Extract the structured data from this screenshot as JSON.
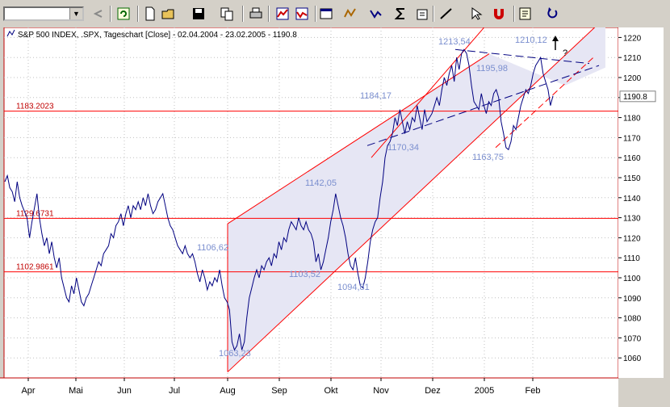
{
  "toolbar": {
    "combo_value": "",
    "buttons": [
      "undo-icon",
      "refresh-icon",
      "new-icon",
      "open-icon",
      "save-icon",
      "copy-icon",
      "print-icon",
      "chart-icon",
      "chart2-icon",
      "window-icon",
      "indicator-icon",
      "compare-icon",
      "sigma-icon",
      "options-icon",
      "draw-line-icon",
      "cursor-icon",
      "magnet-icon",
      "properties-icon",
      "redo-icon"
    ]
  },
  "chart_data": {
    "type": "line",
    "title": "S&P 500 INDEX, .SPX, Tageschart [Close] - 02.04.2004 - 23.02.2005 - 1190.8",
    "ylim": [
      1050,
      1225
    ],
    "y_ticks": [
      1060,
      1070,
      1080,
      1090,
      1100,
      1110,
      1120,
      1130,
      1140,
      1150,
      1160,
      1170,
      1180,
      1190,
      1200,
      1210,
      1220
    ],
    "x_ticks": [
      "Apr",
      "Mai",
      "Jun",
      "Jul",
      "Aug",
      "Sep",
      "Okt",
      "Nov",
      "Dez",
      "2005",
      "Feb"
    ],
    "last_value": "1190.8",
    "grid": true,
    "colors": {
      "price": "#000080",
      "channel": "#ff0000",
      "fill": "#e6e6f4",
      "trend": "#000080",
      "annotation": "#7b8fcf",
      "hline_label": "#c00000"
    },
    "horizontal_lines": [
      {
        "value": 1183.2023,
        "label": "1183.2023"
      },
      {
        "value": 1129.6731,
        "label": "1129.6731"
      },
      {
        "value": 1102.9861,
        "label": "1102.9861"
      }
    ],
    "annotations": [
      {
        "text": "1106,62",
        "x": "Aug",
        "y": 1106.62
      },
      {
        "text": "1063,23",
        "x": "Aug",
        "y": 1063.23
      },
      {
        "text": "1142,05",
        "x": "Okt",
        "y": 1142.05
      },
      {
        "text": "1103,52",
        "x": "Okt",
        "y": 1103.52
      },
      {
        "text": "1094,81",
        "x": "Okt",
        "y": 1094.81
      },
      {
        "text": "1184,17",
        "x": "Nov",
        "y": 1184.17
      },
      {
        "text": "1170,34",
        "x": "Nov",
        "y": 1170.34
      },
      {
        "text": "1213,54",
        "x": "Dez",
        "y": 1213.54
      },
      {
        "text": "1195,98",
        "x": "2005",
        "y": 1195.98
      },
      {
        "text": "1163,75",
        "x": "2005",
        "y": 1163.75
      },
      {
        "text": "1210,12",
        "x": "Feb",
        "y": 1210.12
      },
      {
        "text": "?",
        "x": "Feb",
        "y": 1216
      }
    ],
    "series": [
      {
        "values": [
          1148,
          1151,
          1145,
          1143,
          1138,
          1148,
          1140,
          1136,
          1133,
          1130,
          1120,
          1128,
          1135,
          1142,
          1130,
          1122,
          1116,
          1120,
          1112,
          1118,
          1110,
          1105,
          1110,
          1100,
          1095,
          1090,
          1088,
          1096,
          1092,
          1100,
          1094,
          1088,
          1086,
          1090,
          1092,
          1096,
          1100,
          1104,
          1108,
          1106,
          1112,
          1114,
          1116,
          1122,
          1120,
          1126,
          1128,
          1132,
          1126,
          1132,
          1136,
          1130,
          1136,
          1134,
          1138,
          1134,
          1140,
          1136,
          1142,
          1136,
          1132,
          1134,
          1138,
          1140,
          1142,
          1136,
          1130,
          1126,
          1124,
          1120,
          1116,
          1114,
          1112,
          1116,
          1112,
          1110,
          1112,
          1108,
          1102,
          1098,
          1104,
          1100,
          1094,
          1098,
          1096,
          1100,
          1098,
          1104,
          1096,
          1090,
          1088,
          1084,
          1068,
          1064,
          1066,
          1072,
          1064,
          1068,
          1080,
          1090,
          1095,
          1100,
          1104,
          1100,
          1106,
          1104,
          1108,
          1110,
          1106,
          1112,
          1110,
          1118,
          1114,
          1120,
          1118,
          1124,
          1128,
          1126,
          1124,
          1130,
          1126,
          1124,
          1128,
          1124,
          1122,
          1118,
          1108,
          1112,
          1104,
          1108,
          1114,
          1120,
          1128,
          1134,
          1142,
          1136,
          1130,
          1126,
          1120,
          1112,
          1106,
          1104,
          1110,
          1102,
          1096,
          1095,
          1100,
          1108,
          1118,
          1124,
          1128,
          1130,
          1140,
          1148,
          1160,
          1166,
          1168,
          1172,
          1180,
          1176,
          1184,
          1178,
          1172,
          1178,
          1174,
          1180,
          1178,
          1186,
          1180,
          1174,
          1184,
          1178,
          1180,
          1182,
          1186,
          1190,
          1186,
          1194,
          1200,
          1196,
          1202,
          1206,
          1198,
          1210,
          1204,
          1212,
          1214,
          1212,
          1206,
          1196,
          1188,
          1186,
          1184,
          1192,
          1186,
          1182,
          1188,
          1186,
          1192,
          1194,
          1190,
          1178,
          1172,
          1165,
          1164,
          1168,
          1176,
          1174,
          1180,
          1186,
          1190,
          1194,
          1192,
          1196,
          1202,
          1206,
          1208,
          1210,
          1202,
          1198,
          1194,
          1186,
          1190.8
        ]
      }
    ],
    "channel": {
      "upper": [
        [
          "Aug",
          1127
        ],
        [
          "Feb",
          1226
        ]
      ],
      "lower": [
        [
          "Aug",
          1053
        ],
        [
          "Feb",
          1196
        ]
      ]
    }
  }
}
